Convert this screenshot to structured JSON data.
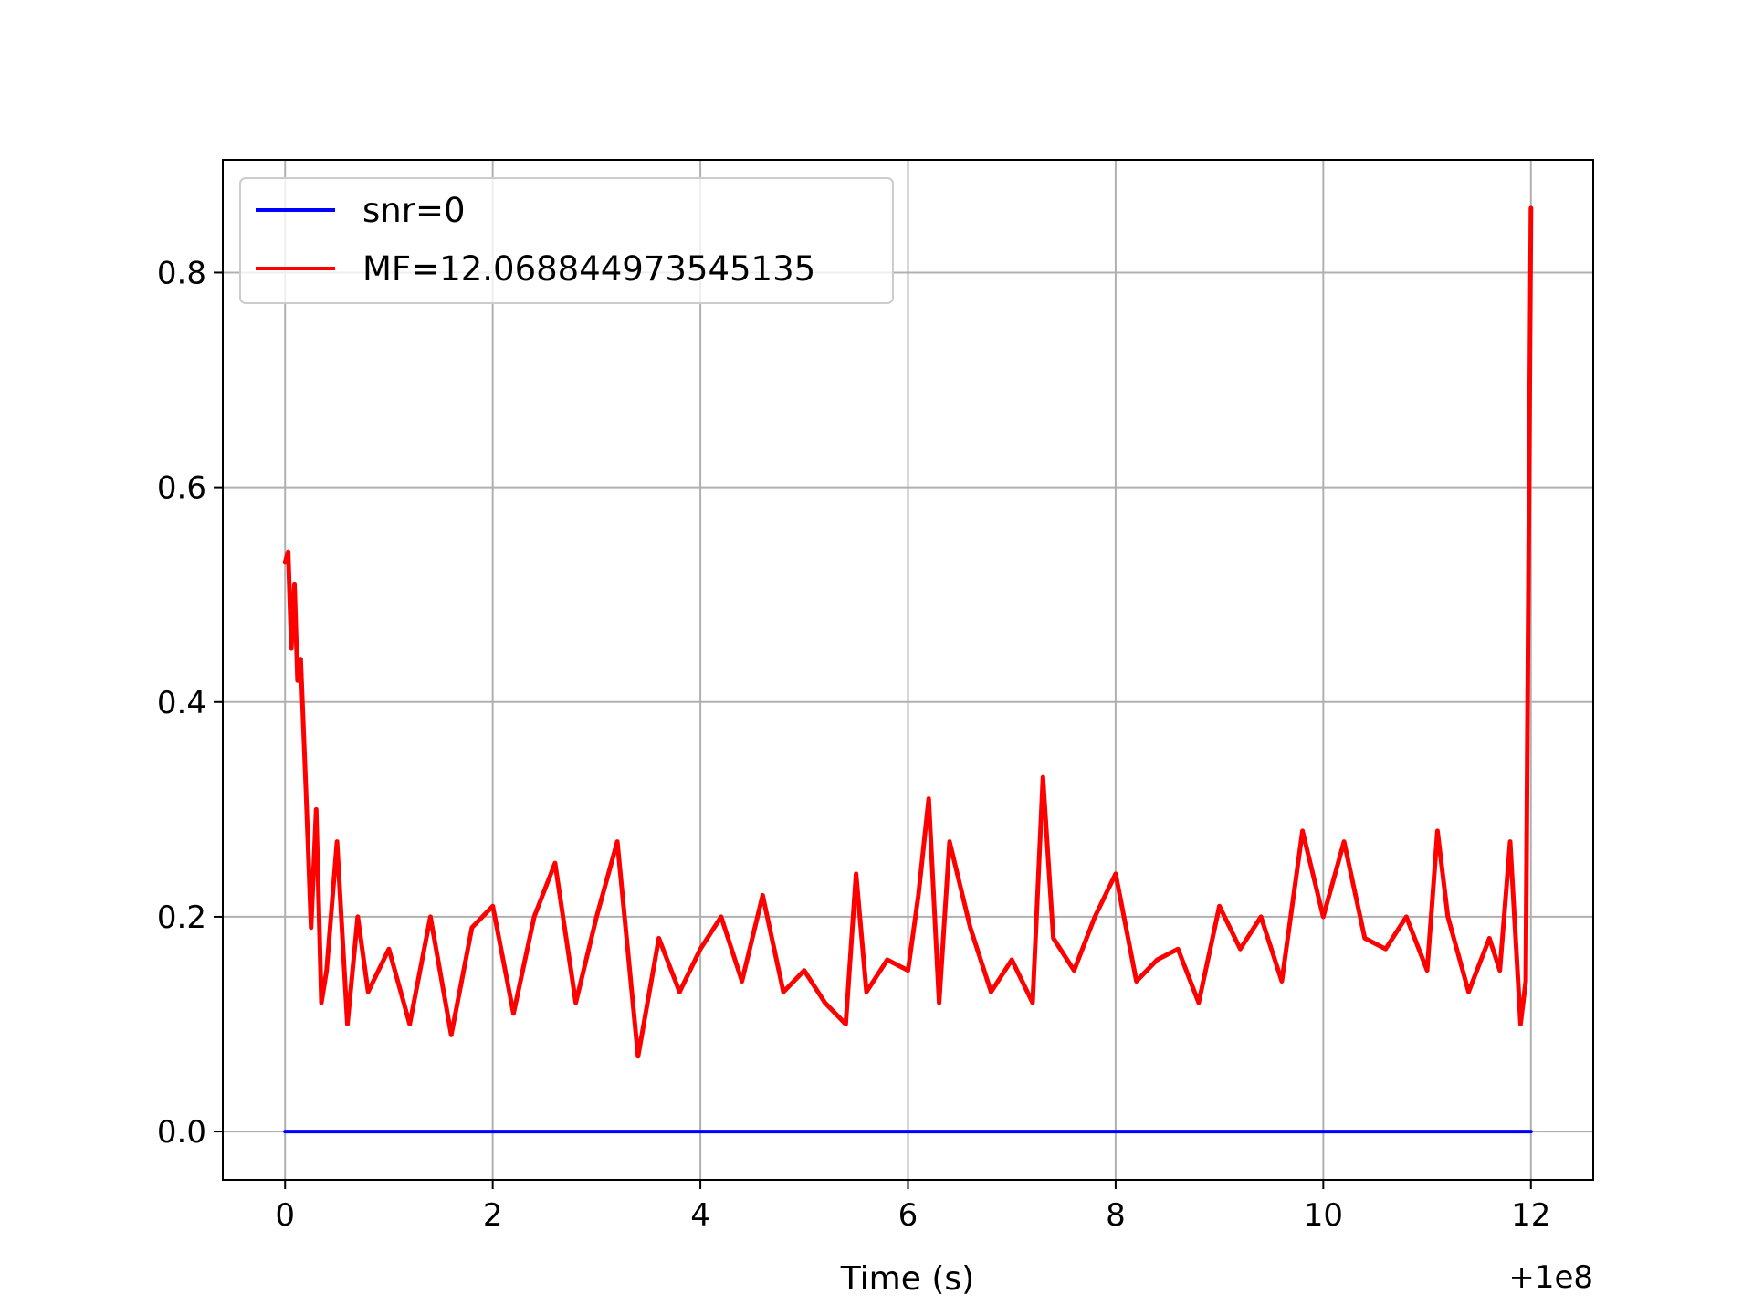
{
  "chart_data": {
    "type": "line",
    "title": "",
    "xlabel": "Time (s)",
    "ylabel": "",
    "x_offset_label": "+1e8",
    "xlim": [
      -0.6,
      12.6
    ],
    "ylim": [
      -0.045,
      0.905
    ],
    "x_ticks": [
      {
        "value": 0,
        "label": "0"
      },
      {
        "value": 2,
        "label": "2"
      },
      {
        "value": 4,
        "label": "4"
      },
      {
        "value": 6,
        "label": "6"
      },
      {
        "value": 8,
        "label": "8"
      },
      {
        "value": 10,
        "label": "10"
      },
      {
        "value": 12,
        "label": "12"
      }
    ],
    "y_ticks": [
      {
        "value": 0.0,
        "label": "0.0"
      },
      {
        "value": 0.2,
        "label": "0.2"
      },
      {
        "value": 0.4,
        "label": "0.4"
      },
      {
        "value": 0.6,
        "label": "0.6"
      },
      {
        "value": 0.8,
        "label": "0.8"
      }
    ],
    "grid": true,
    "legend_position": "top-left",
    "series": [
      {
        "name": "snr=0",
        "color": "#0000ff",
        "x": [
          0,
          12
        ],
        "y": [
          0,
          0
        ]
      },
      {
        "name": "MF=12.068844973545135",
        "color": "#ff0000",
        "x": [
          0,
          0.03,
          0.06,
          0.09,
          0.12,
          0.15,
          0.2,
          0.25,
          0.3,
          0.35,
          0.4,
          0.5,
          0.6,
          0.7,
          0.8,
          1.0,
          1.2,
          1.4,
          1.6,
          1.8,
          2.0,
          2.2,
          2.4,
          2.6,
          2.8,
          3.0,
          3.2,
          3.4,
          3.6,
          3.8,
          4.0,
          4.2,
          4.4,
          4.6,
          4.8,
          5.0,
          5.2,
          5.4,
          5.5,
          5.6,
          5.8,
          6.0,
          6.1,
          6.2,
          6.3,
          6.4,
          6.6,
          6.8,
          7.0,
          7.2,
          7.3,
          7.4,
          7.6,
          7.8,
          8.0,
          8.2,
          8.4,
          8.6,
          8.8,
          9.0,
          9.2,
          9.4,
          9.6,
          9.8,
          10.0,
          10.2,
          10.4,
          10.6,
          10.8,
          11.0,
          11.1,
          11.2,
          11.4,
          11.6,
          11.7,
          11.8,
          11.9,
          11.95,
          12.0
        ],
        "y": [
          0.53,
          0.54,
          0.45,
          0.51,
          0.42,
          0.44,
          0.32,
          0.19,
          0.3,
          0.12,
          0.15,
          0.27,
          0.1,
          0.2,
          0.13,
          0.17,
          0.1,
          0.2,
          0.09,
          0.19,
          0.21,
          0.11,
          0.2,
          0.25,
          0.12,
          0.2,
          0.27,
          0.07,
          0.18,
          0.13,
          0.17,
          0.2,
          0.14,
          0.22,
          0.13,
          0.15,
          0.12,
          0.1,
          0.24,
          0.13,
          0.16,
          0.15,
          0.22,
          0.31,
          0.12,
          0.27,
          0.19,
          0.13,
          0.16,
          0.12,
          0.33,
          0.18,
          0.15,
          0.2,
          0.24,
          0.14,
          0.16,
          0.17,
          0.12,
          0.21,
          0.17,
          0.2,
          0.14,
          0.28,
          0.2,
          0.27,
          0.18,
          0.17,
          0.2,
          0.15,
          0.28,
          0.2,
          0.13,
          0.18,
          0.15,
          0.27,
          0.1,
          0.14,
          0.86
        ]
      }
    ]
  }
}
